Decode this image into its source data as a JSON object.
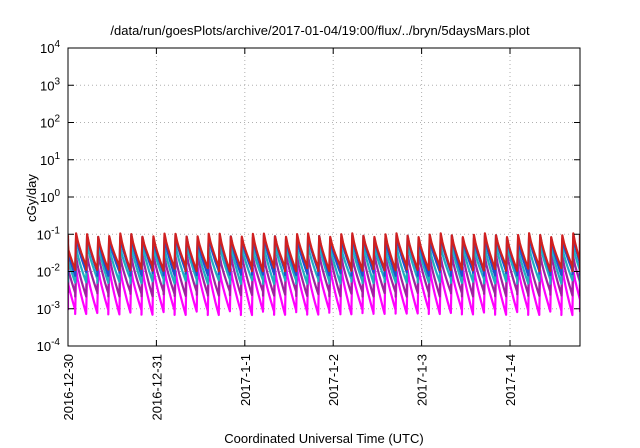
{
  "chart_data": {
    "type": "line",
    "title": "/data/run/goesPlots/archive/2017-01-04/19:00/flux/../bryn/5daysMars.plot",
    "xlabel": "Coordinated Universal Time (UTC)",
    "ylabel": "cGy/day",
    "yscale": "log",
    "ylim": [
      0.0001,
      10000
    ],
    "y_ticks": [
      {
        "base": "10",
        "exp": "-4"
      },
      {
        "base": "10",
        "exp": "-3"
      },
      {
        "base": "10",
        "exp": "-2"
      },
      {
        "base": "10",
        "exp": "-1"
      },
      {
        "base": "10",
        "exp": "0"
      },
      {
        "base": "10",
        "exp": "1"
      },
      {
        "base": "10",
        "exp": "2"
      },
      {
        "base": "10",
        "exp": "3"
      },
      {
        "base": "10",
        "exp": "4"
      }
    ],
    "xlim": [
      "2016-12-30 00:00",
      "2017-01-04 19:00"
    ],
    "x_ticks": [
      "2016-12-30",
      "2016-12-31",
      "2017-1-1",
      "2017-1-2",
      "2017-1-3",
      "2017-1-4"
    ],
    "grid": true,
    "legend": "none",
    "pattern": {
      "period_hours": 3,
      "series_peaks": [
        {
          "color": "#d02020",
          "peak": 0.095,
          "trough": 0.012
        },
        {
          "color": "#2050d0",
          "peak": 0.085,
          "trough": 0.009
        },
        {
          "color": "#20b0c0",
          "peak": 0.05,
          "trough": 0.0055
        },
        {
          "color": "#a020a0",
          "peak": 0.028,
          "trough": 0.0025
        },
        {
          "color": "#ff00ff",
          "peak": 0.012,
          "trough": 0.0008
        }
      ]
    }
  }
}
